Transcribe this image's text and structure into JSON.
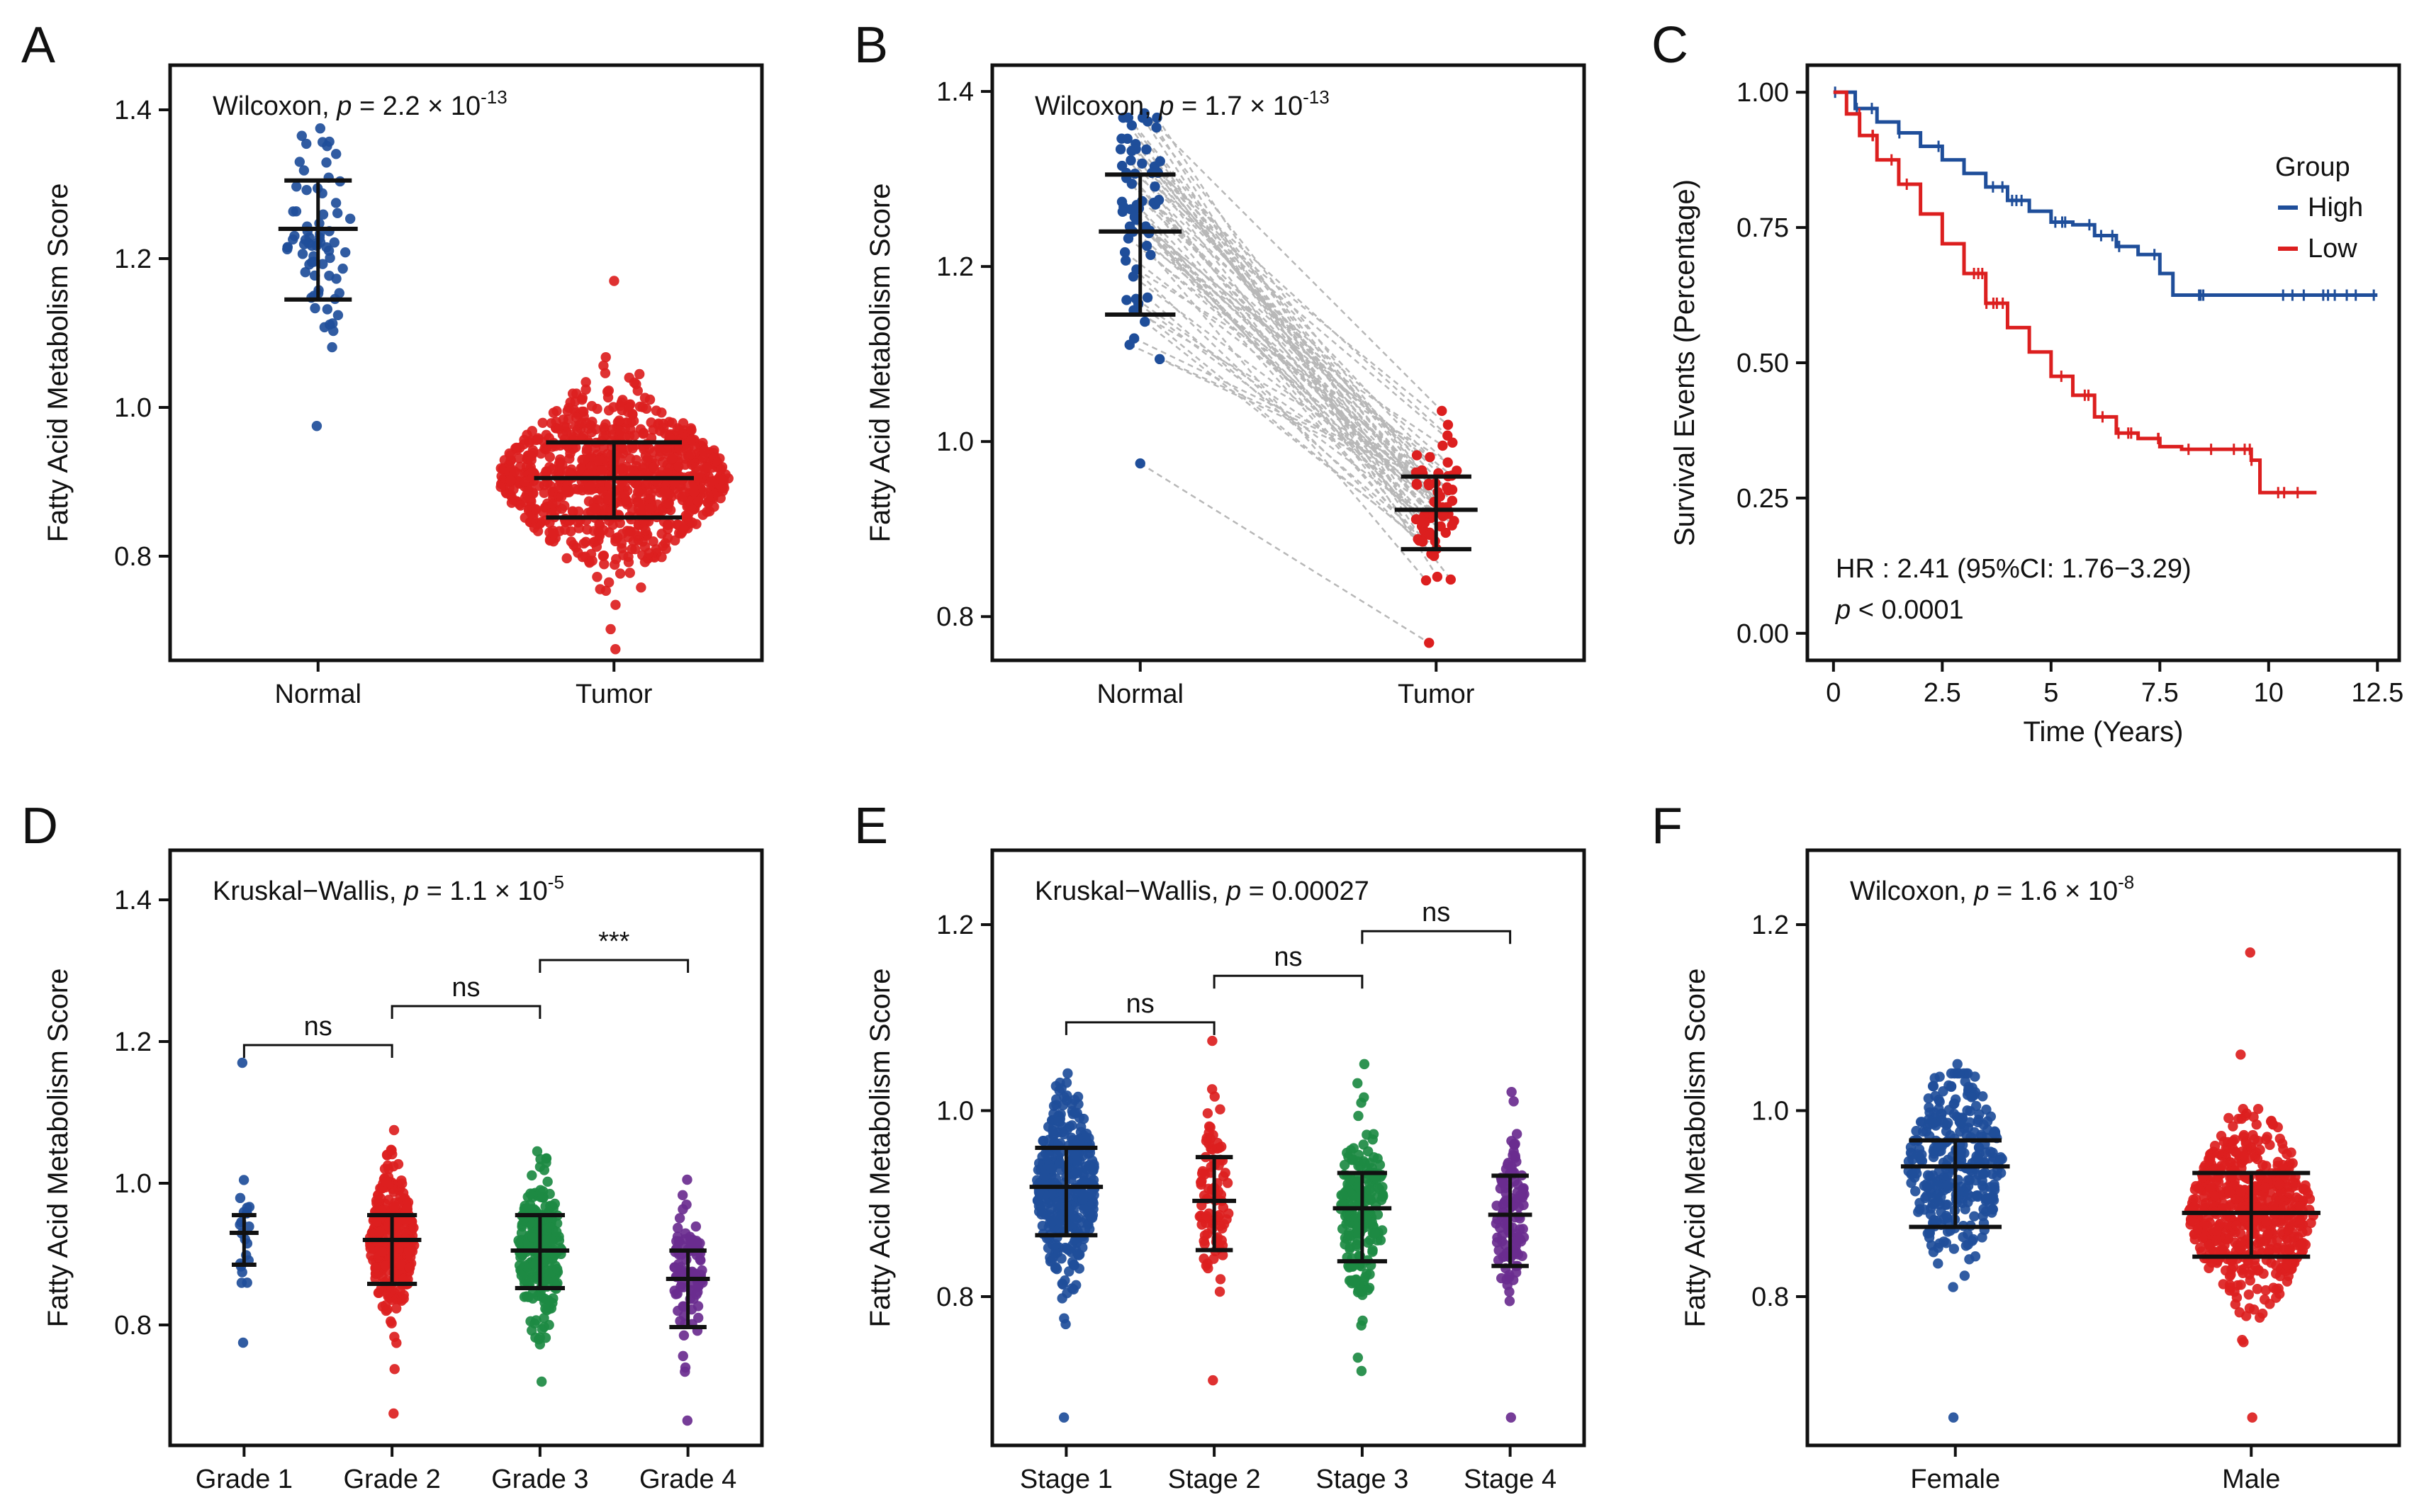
{
  "colors": {
    "blue": "#1f4e9a",
    "red": "#dc1f1f",
    "green": "#1d8a43",
    "purple": "#6a2d8f",
    "grey": "#b8b8b8",
    "black": "#111111"
  },
  "chart_data": [
    {
      "panel": "A",
      "type": "scatter",
      "subtype": "beeswarm",
      "ylabel": "Fatty Acid Metabolism Score",
      "ylim": [
        0.66,
        1.46
      ],
      "yticks": [
        0.8,
        1.0,
        1.2,
        1.4
      ],
      "categories": [
        "Normal",
        "Tumor"
      ],
      "annotation": {
        "prefix": "Wilcoxon, ",
        "p_label": "p",
        "mid": " = 2.2 × 10",
        "exp": "-13"
      },
      "groups": [
        {
          "name": "Normal",
          "color": "#1f4e9a",
          "mean": 1.24,
          "sd_low": 1.145,
          "sd_high": 1.305,
          "min": 0.975,
          "max": 1.375,
          "n": 70,
          "width": 0.22
        },
        {
          "name": "Tumor",
          "color": "#dc1f1f",
          "mean": 0.905,
          "sd_low": 0.852,
          "sd_high": 0.953,
          "min": 0.675,
          "max": 1.17,
          "n": 900,
          "width": 0.78
        }
      ]
    },
    {
      "panel": "B",
      "type": "scatter",
      "subtype": "paired",
      "ylabel": "Fatty Acid Metabolism Score",
      "ylim": [
        0.75,
        1.43
      ],
      "yticks": [
        0.8,
        1.0,
        1.2,
        1.4
      ],
      "categories": [
        "Normal",
        "Tumor"
      ],
      "annotation": {
        "prefix": "Wilcoxon, ",
        "p_label": "p",
        "mid": " = 1.7 × 10",
        "exp": "-13"
      },
      "groups": [
        {
          "name": "Normal",
          "color": "#1f4e9a",
          "mean": 1.24,
          "sd_low": 1.145,
          "sd_high": 1.305,
          "min": 0.975,
          "max": 1.375,
          "n": 60,
          "width": 0.14
        },
        {
          "name": "Tumor",
          "color": "#dc1f1f",
          "mean": 0.922,
          "sd_low": 0.877,
          "sd_high": 0.96,
          "min": 0.77,
          "max": 1.035,
          "n": 60,
          "width": 0.14
        }
      ]
    },
    {
      "panel": "C",
      "type": "line",
      "subtype": "kaplan-meier",
      "xlabel": "Time (Years)",
      "ylabel": "Survival Events (Percentage)",
      "xlim": [
        -0.6,
        13.0
      ],
      "ylim": [
        -0.05,
        1.05
      ],
      "xticks": [
        0,
        2.5,
        5,
        7.5,
        10,
        12.5
      ],
      "xtick_labels": [
        "0",
        "2.5",
        "5",
        "7.5",
        "10",
        "12.5"
      ],
      "yticks": [
        0,
        0.25,
        0.5,
        0.75,
        1.0
      ],
      "ytick_labels": [
        "0.00",
        "0.25",
        "0.50",
        "0.75",
        "1.00"
      ],
      "legend": {
        "title": "Group",
        "position": "top-right"
      },
      "annotation": {
        "hr": "HR : 2.41 (95%CI: 1.76−3.29)",
        "p_label": "p",
        "p_rest": " < 0.0001"
      },
      "series": [
        {
          "name": "High",
          "color": "#1f4e9a",
          "x": [
            0,
            0.5,
            1,
            1.5,
            2,
            2.5,
            3,
            3.5,
            4,
            4.5,
            5,
            5.5,
            6,
            6.5,
            7,
            7.5,
            7.8,
            8.5,
            9,
            10,
            11,
            12.5
          ],
          "y": [
            1.0,
            0.97,
            0.945,
            0.925,
            0.9,
            0.875,
            0.85,
            0.825,
            0.8,
            0.78,
            0.76,
            0.755,
            0.735,
            0.715,
            0.7,
            0.665,
            0.625,
            0.625,
            0.625,
            0.625,
            0.625,
            0.625
          ]
        },
        {
          "name": "Low",
          "color": "#dc1f1f",
          "x": [
            0,
            0.3,
            0.6,
            1,
            1.5,
            2,
            2.5,
            3,
            3.5,
            4,
            4.5,
            5,
            5.5,
            6,
            6.5,
            7,
            7.5,
            8,
            9,
            9.6,
            9.8,
            10.5,
            11.1
          ],
          "y": [
            1.0,
            0.96,
            0.92,
            0.875,
            0.83,
            0.775,
            0.72,
            0.665,
            0.61,
            0.565,
            0.52,
            0.475,
            0.44,
            0.4,
            0.37,
            0.36,
            0.345,
            0.34,
            0.34,
            0.32,
            0.26,
            0.26,
            0.26
          ]
        }
      ]
    },
    {
      "panel": "D",
      "type": "scatter",
      "subtype": "beeswarm",
      "ylabel": "Fatty Acid Metabolism Score",
      "ylim": [
        0.63,
        1.47
      ],
      "yticks": [
        0.8,
        1.0,
        1.2,
        1.4
      ],
      "categories": [
        "Grade 1",
        "Grade 2",
        "Grade 3",
        "Grade 4"
      ],
      "annotation": {
        "prefix": "Kruskal−Wallis, ",
        "p_label": "p",
        "mid": " = 1.1 × 10",
        "exp": "-5"
      },
      "brackets": [
        {
          "from": 0,
          "to": 1,
          "label": "ns",
          "y": 1.195
        },
        {
          "from": 1,
          "to": 2,
          "label": "ns",
          "y": 1.25
        },
        {
          "from": 2,
          "to": 3,
          "label": "***",
          "y": 1.315
        }
      ],
      "groups": [
        {
          "name": "Grade 1",
          "color": "#1f4e9a",
          "mean": 0.93,
          "sd_low": 0.885,
          "sd_high": 0.955,
          "min": 0.775,
          "max": 1.17,
          "n": 20,
          "width": 0.1
        },
        {
          "name": "Grade 2",
          "color": "#dc1f1f",
          "mean": 0.92,
          "sd_low": 0.858,
          "sd_high": 0.955,
          "min": 0.675,
          "max": 1.075,
          "n": 320,
          "width": 0.3
        },
        {
          "name": "Grade 3",
          "color": "#1d8a43",
          "mean": 0.905,
          "sd_low": 0.852,
          "sd_high": 0.955,
          "min": 0.72,
          "max": 1.045,
          "n": 260,
          "width": 0.3
        },
        {
          "name": "Grade 4",
          "color": "#6a2d8f",
          "mean": 0.865,
          "sd_low": 0.797,
          "sd_high": 0.905,
          "min": 0.665,
          "max": 1.005,
          "n": 90,
          "width": 0.2
        }
      ]
    },
    {
      "panel": "E",
      "type": "scatter",
      "subtype": "beeswarm",
      "ylabel": "Fatty Acid Metabolism Score",
      "ylim": [
        0.64,
        1.28
      ],
      "yticks": [
        0.8,
        1.0,
        1.2
      ],
      "categories": [
        "Stage 1",
        "Stage 2",
        "Stage 3",
        "Stage 4"
      ],
      "annotation": {
        "prefix": "Kruskal−Wallis, ",
        "p_label": "p",
        "mid": " = 0.00027",
        "exp": ""
      },
      "brackets": [
        {
          "from": 0,
          "to": 1,
          "label": "ns",
          "y": 1.095
        },
        {
          "from": 1,
          "to": 2,
          "label": "ns",
          "y": 1.145
        },
        {
          "from": 2,
          "to": 3,
          "label": "ns",
          "y": 1.193
        }
      ],
      "groups": [
        {
          "name": "Stage 1",
          "color": "#1f4e9a",
          "mean": 0.918,
          "sd_low": 0.866,
          "sd_high": 0.96,
          "min": 0.67,
          "max": 1.04,
          "n": 360,
          "width": 0.4
        },
        {
          "name": "Stage 2",
          "color": "#dc1f1f",
          "mean": 0.903,
          "sd_low": 0.85,
          "sd_high": 0.95,
          "min": 0.71,
          "max": 1.075,
          "n": 90,
          "width": 0.2
        },
        {
          "name": "Stage 3",
          "color": "#1d8a43",
          "mean": 0.895,
          "sd_low": 0.838,
          "sd_high": 0.933,
          "min": 0.72,
          "max": 1.05,
          "n": 200,
          "width": 0.3
        },
        {
          "name": "Stage 4",
          "color": "#6a2d8f",
          "mean": 0.888,
          "sd_low": 0.833,
          "sd_high": 0.93,
          "min": 0.67,
          "max": 1.02,
          "n": 110,
          "width": 0.2
        }
      ]
    },
    {
      "panel": "F",
      "type": "scatter",
      "subtype": "beeswarm",
      "ylabel": "Fatty Acid Metabolism Score",
      "ylim": [
        0.64,
        1.28
      ],
      "yticks": [
        0.8,
        1.0,
        1.2
      ],
      "categories": [
        "Female",
        "Male"
      ],
      "annotation": {
        "prefix": "Wilcoxon, ",
        "p_label": "p",
        "mid": " = 1.6 × 10",
        "exp": "-8"
      },
      "groups": [
        {
          "name": "Female",
          "color": "#1f4e9a",
          "mean": 0.94,
          "sd_low": 0.875,
          "sd_high": 0.968,
          "min": 0.67,
          "max": 1.05,
          "n": 320,
          "width": 0.32
        },
        {
          "name": "Male",
          "color": "#dc1f1f",
          "mean": 0.89,
          "sd_low": 0.843,
          "sd_high": 0.933,
          "min": 0.67,
          "max": 1.17,
          "n": 600,
          "width": 0.42
        }
      ]
    }
  ]
}
